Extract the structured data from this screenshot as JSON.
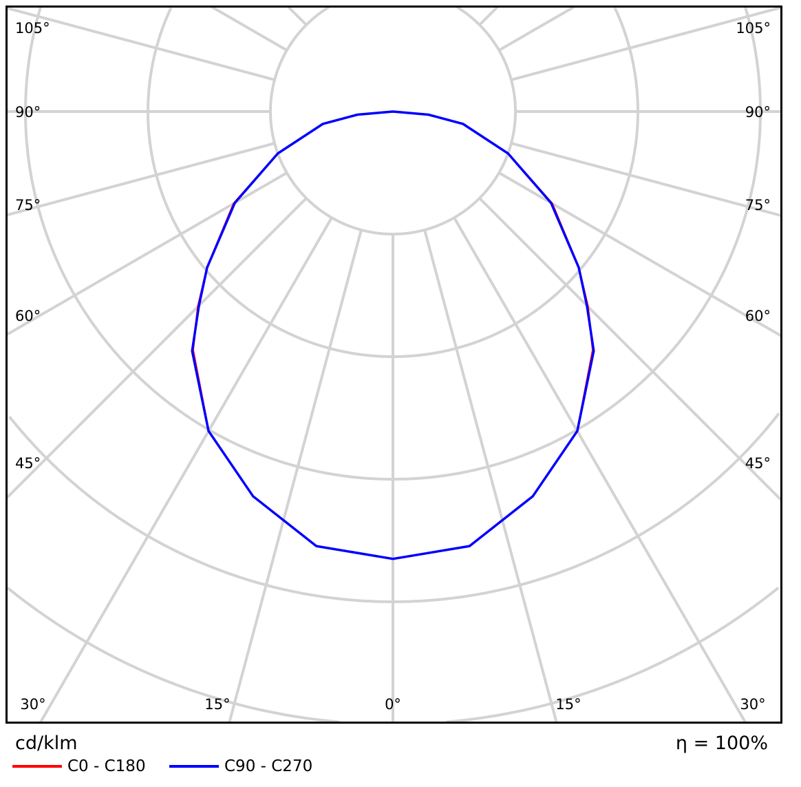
{
  "chart_data": {
    "type": "polar-line",
    "unit_label": "cd/klm",
    "efficiency_label": "η = 100%",
    "angle_ticks_left": [
      "105°",
      "90°",
      "75°",
      "60°",
      "45°"
    ],
    "angle_ticks_right": [
      "105°",
      "90°",
      "75°",
      "60°",
      "45°"
    ],
    "angle_ticks_bottom": [
      "30°",
      "15°",
      "0°",
      "15°",
      "30°"
    ],
    "grid": true,
    "angles_deg": [
      0,
      10,
      20,
      30,
      40,
      45,
      50,
      60,
      70,
      80,
      85,
      90
    ],
    "radius_unit": "grid rings (ring values not legible)",
    "series": [
      {
        "name": "C0 - C180",
        "color": "#ff0000",
        "values": [
          3.65,
          3.6,
          3.34,
          3.01,
          2.54,
          2.25,
          1.98,
          1.5,
          1.0,
          0.58,
          0.29,
          0
        ]
      },
      {
        "name": "C90 - C270",
        "color": "#0000ff",
        "values": [
          3.65,
          3.6,
          3.34,
          3.01,
          2.55,
          2.24,
          1.98,
          1.49,
          1.0,
          0.58,
          0.29,
          0
        ]
      }
    ],
    "legend_position": "bottom-left"
  }
}
